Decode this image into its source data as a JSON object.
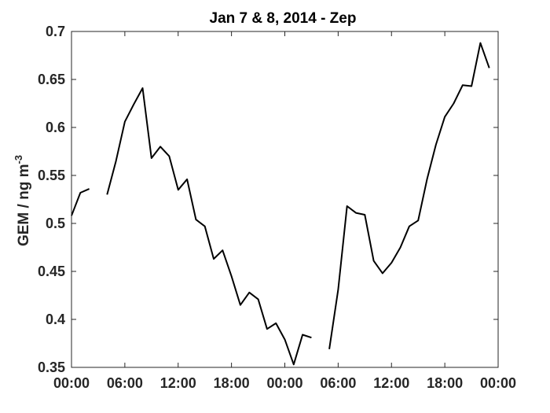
{
  "chart_data": {
    "type": "line",
    "title": "Jan 7 & 8, 2014 - Zep",
    "ylabel": "GEM / ng m",
    "ylabel_superscript": "-3",
    "xlabel": "",
    "xlim": [
      0,
      48
    ],
    "ylim": [
      0.35,
      0.7
    ],
    "x_ticks": [
      0,
      6,
      12,
      18,
      24,
      30,
      36,
      42,
      48
    ],
    "x_tick_labels": [
      "00:00",
      "06:00",
      "12:00",
      "18:00",
      "00:00",
      "06:00",
      "12:00",
      "18:00",
      "00:00"
    ],
    "y_ticks": [
      0.35,
      0.4,
      0.45,
      0.5,
      0.55,
      0.6,
      0.65,
      0.7
    ],
    "y_tick_labels": [
      "0.35",
      "0.4",
      "0.45",
      "0.5",
      "0.55",
      "0.6",
      "0.65",
      "0.7"
    ],
    "x_units": "hours from 00:00 on Jan 7, 2014",
    "grid": false,
    "series": [
      {
        "color": "#000000",
        "segments": [
          [
            [
              0,
              0.508
            ],
            [
              1,
              0.532
            ],
            [
              2,
              0.536
            ]
          ],
          [
            [
              4,
              0.53
            ],
            [
              5,
              0.565
            ],
            [
              6,
              0.606
            ],
            [
              7,
              0.624
            ],
            [
              8,
              0.641
            ],
            [
              9,
              0.568
            ],
            [
              10,
              0.58
            ],
            [
              11,
              0.57
            ],
            [
              12,
              0.535
            ],
            [
              13,
              0.546
            ],
            [
              14,
              0.504
            ],
            [
              15,
              0.497
            ],
            [
              16,
              0.463
            ],
            [
              17,
              0.472
            ],
            [
              18,
              0.445
            ],
            [
              19,
              0.415
            ],
            [
              20,
              0.428
            ],
            [
              21,
              0.421
            ],
            [
              22,
              0.39
            ],
            [
              23,
              0.396
            ],
            [
              24,
              0.379
            ],
            [
              25,
              0.353
            ],
            [
              26,
              0.384
            ],
            [
              27,
              0.381
            ]
          ],
          [
            [
              29,
              0.369
            ],
            [
              30,
              0.431
            ],
            [
              31,
              0.518
            ],
            [
              32,
              0.511
            ],
            [
              33,
              0.509
            ],
            [
              34,
              0.461
            ],
            [
              35,
              0.448
            ],
            [
              36,
              0.459
            ],
            [
              37,
              0.475
            ],
            [
              38,
              0.497
            ],
            [
              39,
              0.503
            ],
            [
              40,
              0.546
            ],
            [
              41,
              0.582
            ],
            [
              42,
              0.611
            ],
            [
              43,
              0.625
            ],
            [
              44,
              0.644
            ],
            [
              45,
              0.643
            ],
            [
              46,
              0.688
            ],
            [
              47,
              0.662
            ]
          ]
        ]
      }
    ]
  }
}
